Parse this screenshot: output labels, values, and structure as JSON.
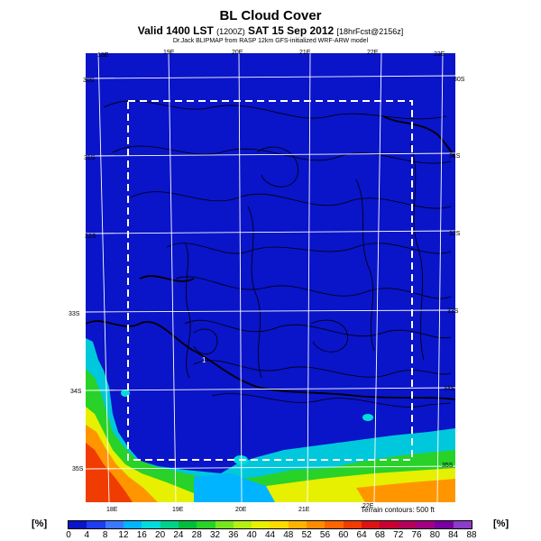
{
  "header": {
    "title": "BL Cloud Cover",
    "subtitle_main": "Valid 1400 LST",
    "subtitle_small1": "(1200Z)",
    "subtitle_date": "SAT 15 Sep 2012",
    "subtitle_small2": "[18hrFcst@2156z]",
    "credit": "Dr.Jack BLIPMAP from RASP 12km GFS-initialized WRF-ARW model"
  },
  "map": {
    "top_lon_labels": [
      "18E",
      "19E",
      "20E",
      "21E",
      "22E",
      "23E"
    ],
    "bottom_lon_labels": [
      "18E",
      "19E",
      "20E",
      "21E",
      "22E"
    ],
    "left_lat_labels": [
      "30S",
      "31S",
      "32S",
      "33S",
      "34S",
      "35S"
    ],
    "right_lat_labels": [
      "30S",
      "31S",
      "32S",
      "33S",
      "34S",
      "35S"
    ],
    "point_label": "1",
    "terrain_note": "Terrain contours: 500 ft"
  },
  "colorbar": {
    "unit_left": "[%]",
    "unit_right": "[%]",
    "labels": [
      "0",
      "4",
      "8",
      "12",
      "16",
      "20",
      "24",
      "28",
      "32",
      "36",
      "40",
      "44",
      "48",
      "52",
      "56",
      "60",
      "64",
      "68",
      "72",
      "76",
      "80",
      "84",
      "88"
    ],
    "colors": [
      "#0a14c8",
      "#1e3cf0",
      "#3c78ff",
      "#00b4ff",
      "#00dcdc",
      "#00d28c",
      "#00be3c",
      "#28d228",
      "#78e61e",
      "#b4f014",
      "#e6f000",
      "#ffdc00",
      "#ffb400",
      "#ff8c00",
      "#ff6400",
      "#f03c00",
      "#dc1414",
      "#c80032",
      "#b4005a",
      "#a00082",
      "#7800a0",
      "#8c3cc8"
    ]
  }
}
